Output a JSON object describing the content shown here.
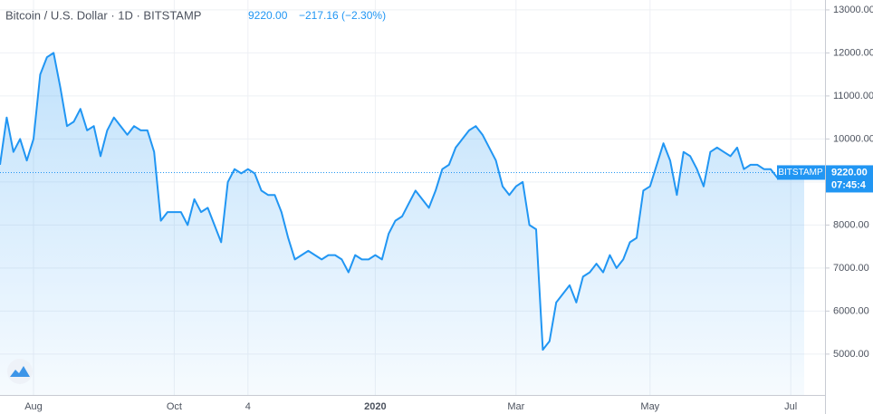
{
  "header": {
    "symbol": "Bitcoin / U.S. Dollar · 1D · BITSTAMP",
    "price": "9220.00",
    "change": "−217.16 (−2.30%)"
  },
  "chart_data": {
    "type": "area",
    "categories": [
      null,
      null,
      null,
      null,
      null,
      "Aug",
      null,
      null,
      null,
      null,
      null,
      null,
      null,
      null,
      null,
      null,
      null,
      null,
      null,
      null,
      null,
      null,
      null,
      null,
      null,
      null,
      "Oct",
      null,
      null,
      null,
      null,
      null,
      null,
      null,
      null,
      null,
      null,
      "4",
      null,
      null,
      null,
      null,
      null,
      null,
      null,
      null,
      null,
      null,
      null,
      null,
      null,
      null,
      null,
      null,
      null,
      null,
      "2020",
      null,
      null,
      null,
      null,
      null,
      null,
      null,
      null,
      null,
      null,
      null,
      null,
      null,
      null,
      null,
      null,
      null,
      null,
      null,
      null,
      "Mar",
      null,
      null,
      null,
      null,
      null,
      null,
      null,
      null,
      null,
      null,
      null,
      null,
      null,
      null,
      null,
      null,
      null,
      null,
      null,
      "May",
      null,
      null,
      null,
      null,
      null,
      null,
      null,
      null,
      null,
      null,
      null,
      null,
      null,
      null,
      null,
      null,
      null,
      null,
      null,
      null,
      "Jul",
      null,
      null
    ],
    "values": [
      9400,
      10500,
      9700,
      10000,
      9500,
      10000,
      11500,
      11900,
      12000,
      11200,
      10300,
      10400,
      10700,
      10200,
      10300,
      9600,
      10200,
      10500,
      10300,
      10100,
      10300,
      10200,
      10200,
      9700,
      8100,
      8300,
      8300,
      8300,
      8000,
      8600,
      8300,
      8400,
      8000,
      7600,
      9000,
      9300,
      9200,
      9300,
      9200,
      8800,
      8700,
      8700,
      8300,
      7700,
      7200,
      7300,
      7400,
      7300,
      7200,
      7300,
      7300,
      7200,
      6900,
      7300,
      7200,
      7200,
      7300,
      7200,
      7800,
      8100,
      8200,
      8500,
      8800,
      8600,
      8400,
      8800,
      9300,
      9400,
      9800,
      10000,
      10200,
      10300,
      10100,
      9800,
      9500,
      8900,
      8700,
      8900,
      9000,
      8000,
      7900,
      5100,
      5300,
      6200,
      6400,
      6600,
      6200,
      6800,
      6900,
      7100,
      6900,
      7300,
      7000,
      7200,
      7600,
      7700,
      8800,
      8900,
      9400,
      9900,
      9500,
      8700,
      9700,
      9600,
      9300,
      8900,
      9700,
      9800,
      9700,
      9600,
      9800,
      9300,
      9400,
      9400,
      9300,
      9300,
      9100,
      9100,
      9200,
      9300,
      9220
    ],
    "color": "#2196f3",
    "ylim": [
      4050,
      13230
    ],
    "yticks": [
      {
        "value": 5000,
        "label": "5000.00"
      },
      {
        "value": 6000,
        "label": "6000.00"
      },
      {
        "value": 7000,
        "label": "7000.00"
      },
      {
        "value": 8000,
        "label": "8000.00"
      },
      {
        "value": 9000,
        "label": "9000.00"
      },
      {
        "value": 10000,
        "label": "10000.00"
      },
      {
        "value": 11000,
        "label": "11000.00"
      },
      {
        "value": 12000,
        "label": "12000.00"
      },
      {
        "value": 13000,
        "label": "13000.00"
      }
    ],
    "grid": true,
    "price_line": {
      "exchange": "BITSTAMP",
      "label": "9220.00",
      "countdown": "07:45:4"
    }
  }
}
